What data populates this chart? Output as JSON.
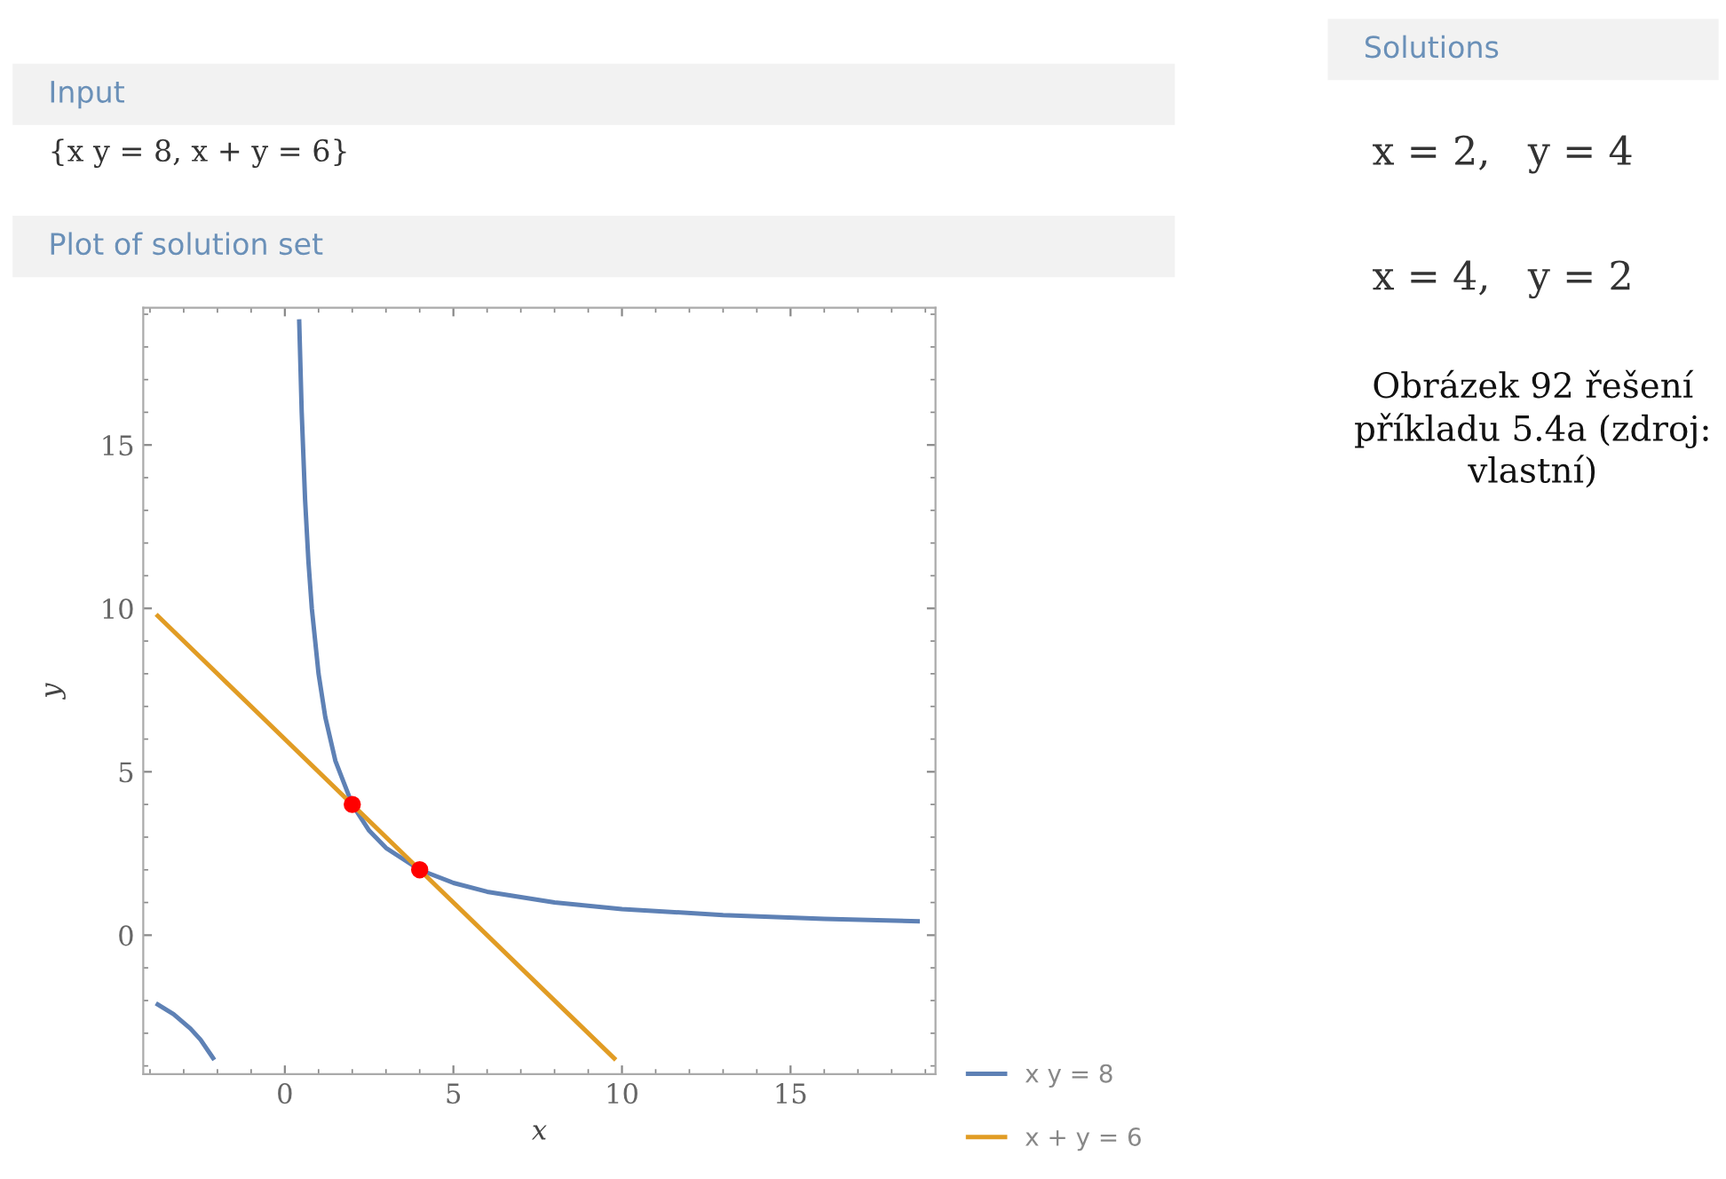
{
  "chart_data": {
    "type": "line",
    "title": "Plot of solution set",
    "xlabel": "x",
    "ylabel": "y",
    "annotations": [
      "Input",
      "{x y = 8, x + y = 6}",
      "Solutions",
      "x = 2,   y = 4",
      "x = 4,   y = 2",
      "Obrázek 92 řešení příkladu 5.4a (zdroj: vlastní)"
    ],
    "series": [
      {
        "name": "x y = 8",
        "color": "#5e81b5",
        "x": [
          -3.77,
          -3.3,
          -2.8,
          -2.5,
          -2.13,
          0,
          0.426,
          0.5,
          0.6,
          0.7,
          0.8,
          1,
          1.2,
          1.5,
          2,
          2.5,
          3,
          4,
          5,
          6,
          8,
          10,
          13,
          16,
          18.77
        ],
        "values": [
          -2.12,
          -2.42,
          -2.86,
          -3.2,
          -3.76,
          null,
          18.78,
          16,
          13.33,
          11.43,
          10,
          8,
          6.67,
          5.33,
          4,
          3.2,
          2.67,
          2,
          1.6,
          1.33,
          1,
          0.8,
          0.615,
          0.5,
          0.426
        ]
      },
      {
        "name": "x + y = 6",
        "color": "#e19c24",
        "x": [
          -3.77,
          9.77
        ],
        "values": [
          9.77,
          -3.77
        ]
      },
      {
        "type": "scatter",
        "color": "#ff0000",
        "marker": "circle",
        "x": [
          2,
          4
        ],
        "values": [
          4,
          2
        ]
      }
    ],
    "xlim": [
      -4.2,
      19.3
    ],
    "ylim": [
      -4.25,
      19.2
    ],
    "xticks": [
      0,
      5,
      10,
      15
    ],
    "yticks": [
      0,
      5,
      10,
      15
    ],
    "grid": false,
    "legend": "bottom right"
  }
}
